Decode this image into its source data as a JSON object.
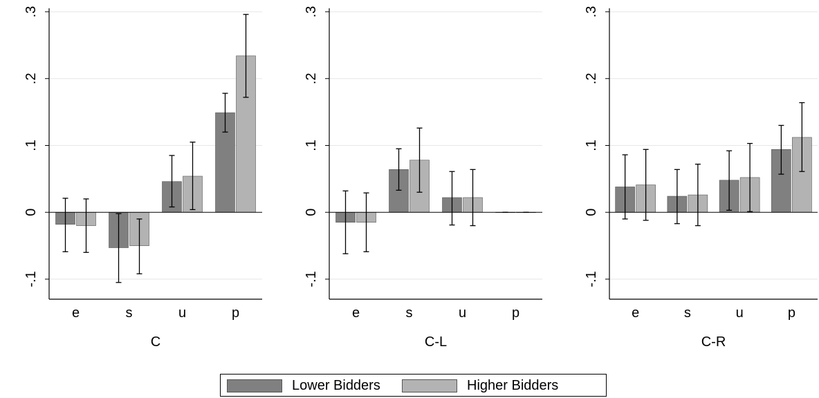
{
  "chart_data": [
    {
      "type": "bar",
      "xlabel": "C",
      "categories": [
        "e",
        "s",
        "u",
        "p"
      ],
      "ylim": [
        -0.13,
        0.3
      ],
      "yticks": [
        {
          "value": -0.1,
          "label": "-.1"
        },
        {
          "value": 0,
          "label": "0"
        },
        {
          "value": 0.1,
          "label": ".1"
        },
        {
          "value": 0.2,
          "label": ".2"
        },
        {
          "value": 0.3,
          "label": ".3"
        }
      ],
      "grid": true,
      "series": [
        {
          "name": "Lower Bidders",
          "values": [
            -0.018,
            -0.053,
            0.046,
            0.149
          ],
          "ci_low": [
            -0.059,
            -0.105,
            0.008,
            0.12
          ],
          "ci_high": [
            0.021,
            -0.002,
            0.085,
            0.178
          ]
        },
        {
          "name": "Higher Bidders",
          "values": [
            -0.02,
            -0.05,
            0.054,
            0.234
          ],
          "ci_low": [
            -0.06,
            -0.092,
            0.004,
            0.172
          ],
          "ci_high": [
            0.02,
            -0.01,
            0.105,
            0.296
          ]
        }
      ]
    },
    {
      "type": "bar",
      "xlabel": "C-L",
      "categories": [
        "e",
        "s",
        "u",
        "p"
      ],
      "ylim": [
        -0.13,
        0.3
      ],
      "yticks": [
        {
          "value": -0.1,
          "label": "-.1"
        },
        {
          "value": 0,
          "label": "0"
        },
        {
          "value": 0.1,
          "label": ".1"
        },
        {
          "value": 0.2,
          "label": ".2"
        },
        {
          "value": 0.3,
          "label": ".3"
        }
      ],
      "grid": true,
      "series": [
        {
          "name": "Lower Bidders",
          "values": [
            -0.015,
            0.064,
            0.022,
            0.0
          ],
          "ci_low": [
            -0.062,
            0.033,
            -0.019,
            0.0
          ],
          "ci_high": [
            0.032,
            0.095,
            0.061,
            0.0
          ]
        },
        {
          "name": "Higher Bidders",
          "values": [
            -0.015,
            0.078,
            0.022,
            0.0
          ],
          "ci_low": [
            -0.059,
            0.03,
            -0.02,
            0.0
          ],
          "ci_high": [
            0.029,
            0.126,
            0.064,
            0.0
          ]
        }
      ]
    },
    {
      "type": "bar",
      "xlabel": "C-R",
      "categories": [
        "e",
        "s",
        "u",
        "p"
      ],
      "ylim": [
        -0.13,
        0.3
      ],
      "yticks": [
        {
          "value": -0.1,
          "label": "-.1"
        },
        {
          "value": 0,
          "label": "0"
        },
        {
          "value": 0.1,
          "label": ".1"
        },
        {
          "value": 0.2,
          "label": ".2"
        },
        {
          "value": 0.3,
          "label": ".3"
        }
      ],
      "grid": true,
      "series": [
        {
          "name": "Lower Bidders",
          "values": [
            0.038,
            0.024,
            0.048,
            0.094
          ],
          "ci_low": [
            -0.01,
            -0.017,
            0.003,
            0.057
          ],
          "ci_high": [
            0.086,
            0.064,
            0.092,
            0.13
          ]
        },
        {
          "name": "Higher Bidders",
          "values": [
            0.041,
            0.026,
            0.052,
            0.112
          ],
          "ci_low": [
            -0.012,
            -0.02,
            0.001,
            0.061
          ],
          "ci_high": [
            0.094,
            0.072,
            0.103,
            0.164
          ]
        }
      ]
    }
  ],
  "legend": {
    "position": "bottom-center",
    "items": [
      {
        "label": "Lower Bidders",
        "color": "#808080"
      },
      {
        "label": "Higher Bidders",
        "color": "#b3b3b3"
      }
    ]
  },
  "colors": {
    "gridline": "#e6e6e6",
    "axis": "#000000",
    "errorbar": "#000000"
  }
}
